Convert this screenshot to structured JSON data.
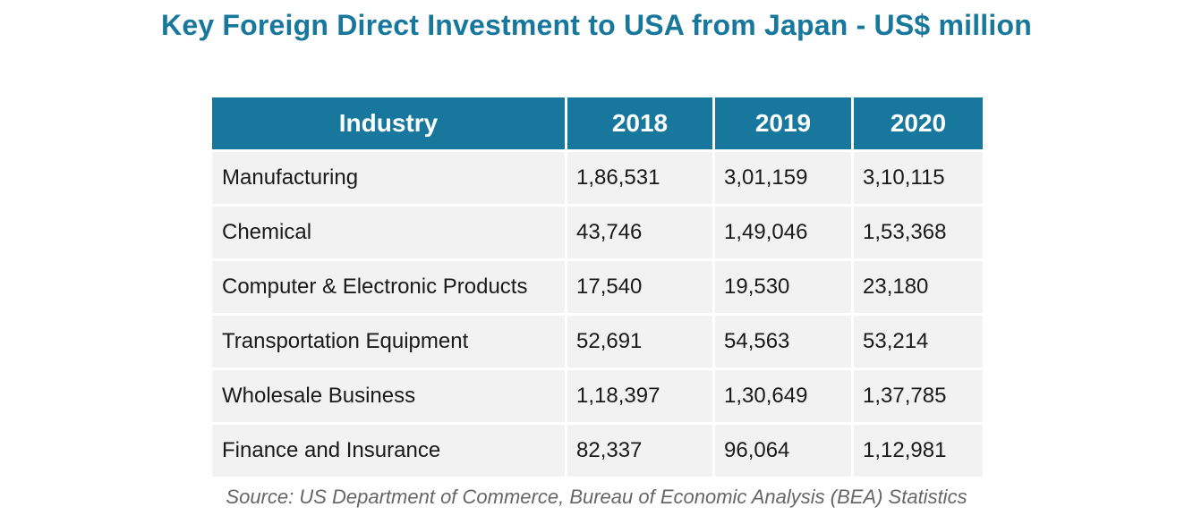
{
  "title": "Key Foreign Direct Investment to USA from Japan - US$ million",
  "colors": {
    "title": "#17779c",
    "header_bg": "#17779c",
    "row_bg": "#f2f2f2",
    "source_text": "#666666"
  },
  "chart_data": {
    "type": "table",
    "title": "Key Foreign Direct Investment to USA from Japan - US$ million",
    "columns": [
      "Industry",
      "2018",
      "2019",
      "2020"
    ],
    "rows": [
      [
        "Manufacturing",
        "1,86,531",
        "3,01,159",
        "3,10,115"
      ],
      [
        "Chemical",
        "43,746",
        "1,49,046",
        "1,53,368"
      ],
      [
        "Computer & Electronic Products",
        "17,540",
        "19,530",
        "23,180"
      ],
      [
        "Transportation Equipment",
        "52,691",
        "54,563",
        "53,214"
      ],
      [
        "Wholesale Business",
        "1,18,397",
        "1,30,649",
        "1,37,785"
      ],
      [
        "Finance and Insurance",
        "82,337",
        "96,064",
        "1,12,981"
      ]
    ],
    "source": "Source: US Department of Commerce, Bureau of Economic Analysis (BEA) Statistics"
  }
}
